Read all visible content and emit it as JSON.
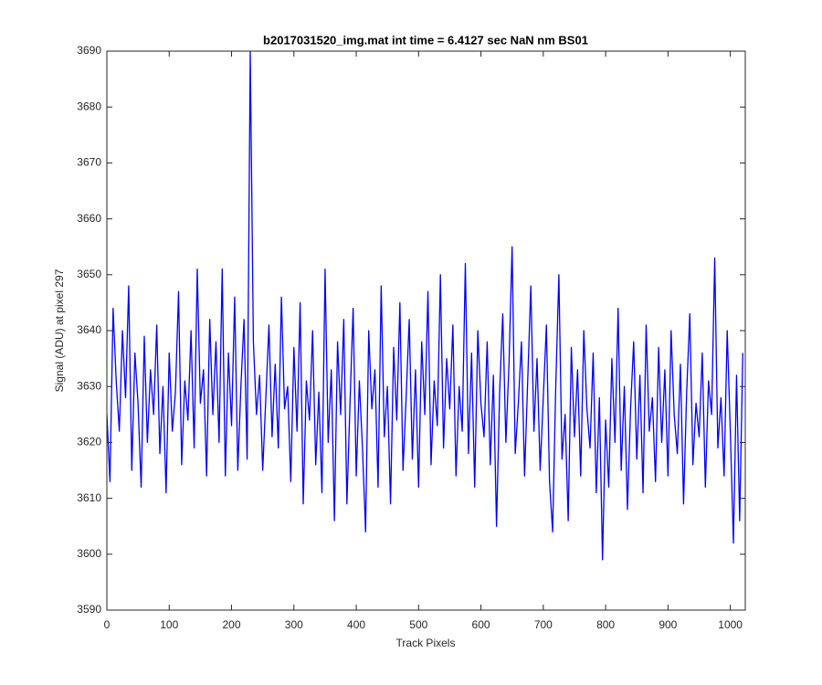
{
  "chart_data": {
    "type": "line",
    "title": "b2017031520_img.mat int time = 6.4127 sec  NaN nm BS01",
    "xlabel": "Track Pixels",
    "ylabel": "Signal (ADU) at pixel 297",
    "xlim": [
      0,
      1024
    ],
    "ylim": [
      3590,
      3690
    ],
    "xticks": [
      0,
      100,
      200,
      300,
      400,
      500,
      600,
      700,
      800,
      900,
      1000
    ],
    "yticks": [
      3590,
      3600,
      3610,
      3620,
      3630,
      3640,
      3650,
      3660,
      3670,
      3680,
      3690
    ],
    "x": [
      0,
      5,
      10,
      15,
      20,
      25,
      30,
      35,
      40,
      45,
      50,
      55,
      60,
      65,
      70,
      75,
      80,
      85,
      90,
      95,
      100,
      105,
      110,
      115,
      120,
      125,
      130,
      135,
      140,
      145,
      150,
      155,
      160,
      165,
      170,
      175,
      180,
      185,
      190,
      195,
      200,
      205,
      210,
      215,
      220,
      225,
      230,
      235,
      240,
      245,
      250,
      255,
      260,
      265,
      270,
      275,
      280,
      285,
      290,
      295,
      300,
      305,
      310,
      315,
      320,
      325,
      330,
      335,
      340,
      345,
      350,
      355,
      360,
      365,
      370,
      375,
      380,
      385,
      390,
      395,
      400,
      405,
      410,
      415,
      420,
      425,
      430,
      435,
      440,
      445,
      450,
      455,
      460,
      465,
      470,
      475,
      480,
      485,
      490,
      495,
      500,
      505,
      510,
      515,
      520,
      525,
      530,
      535,
      540,
      545,
      550,
      555,
      560,
      565,
      570,
      575,
      580,
      585,
      590,
      595,
      600,
      605,
      610,
      615,
      620,
      625,
      630,
      635,
      640,
      645,
      650,
      655,
      660,
      665,
      670,
      675,
      680,
      685,
      690,
      695,
      700,
      705,
      710,
      715,
      720,
      725,
      730,
      735,
      740,
      745,
      750,
      755,
      760,
      765,
      770,
      775,
      780,
      785,
      790,
      795,
      800,
      805,
      810,
      815,
      820,
      825,
      830,
      835,
      840,
      845,
      850,
      855,
      860,
      865,
      870,
      875,
      880,
      885,
      890,
      895,
      900,
      905,
      910,
      915,
      920,
      925,
      930,
      935,
      940,
      945,
      950,
      955,
      960,
      965,
      970,
      975,
      980,
      985,
      990,
      995,
      1000,
      1005,
      1010,
      1015,
      1020
    ],
    "series": [
      {
        "name": "Signal",
        "color": "#0000ff",
        "values": [
          3625,
          3613,
          3644,
          3631,
          3622,
          3640,
          3628,
          3648,
          3615,
          3636,
          3627,
          3612,
          3639,
          3620,
          3633,
          3625,
          3641,
          3618,
          3630,
          3611,
          3636,
          3622,
          3629,
          3647,
          3616,
          3631,
          3624,
          3640,
          3619,
          3651,
          3627,
          3633,
          3614,
          3642,
          3625,
          3638,
          3620,
          3651,
          3614,
          3636,
          3623,
          3646,
          3615,
          3630,
          3642,
          3617,
          3690,
          3638,
          3625,
          3632,
          3615,
          3628,
          3641,
          3621,
          3634,
          3619,
          3646,
          3626,
          3630,
          3613,
          3637,
          3622,
          3645,
          3609,
          3631,
          3624,
          3640,
          3616,
          3629,
          3611,
          3651,
          3620,
          3633,
          3606,
          3638,
          3625,
          3642,
          3609,
          3627,
          3644,
          3614,
          3631,
          3619,
          3604,
          3640,
          3626,
          3633,
          3612,
          3648,
          3621,
          3630,
          3609,
          3637,
          3624,
          3645,
          3615,
          3628,
          3642,
          3617,
          3633,
          3612,
          3638,
          3625,
          3647,
          3616,
          3631,
          3623,
          3650,
          3619,
          3635,
          3626,
          3641,
          3614,
          3630,
          3622,
          3652,
          3618,
          3636,
          3612,
          3640,
          3627,
          3621,
          3638,
          3616,
          3632,
          3605,
          3629,
          3643,
          3620,
          3634,
          3655,
          3618,
          3627,
          3638,
          3614,
          3631,
          3648,
          3622,
          3635,
          3615,
          3628,
          3641,
          3613,
          3604,
          3630,
          3650,
          3617,
          3625,
          3606,
          3637,
          3621,
          3633,
          3614,
          3640,
          3626,
          3619,
          3636,
          3611,
          3628,
          3599,
          3624,
          3612,
          3635,
          3620,
          3644,
          3615,
          3630,
          3608,
          3626,
          3638,
          3617,
          3632,
          3611,
          3641,
          3622,
          3628,
          3613,
          3637,
          3620,
          3633,
          3614,
          3640,
          3625,
          3618,
          3634,
          3609,
          3629,
          3643,
          3616,
          3627,
          3621,
          3636,
          3612,
          3631,
          3625,
          3653,
          3619,
          3628,
          3614,
          3640,
          3622,
          3602,
          3632,
          3606,
          3636
        ]
      }
    ]
  }
}
